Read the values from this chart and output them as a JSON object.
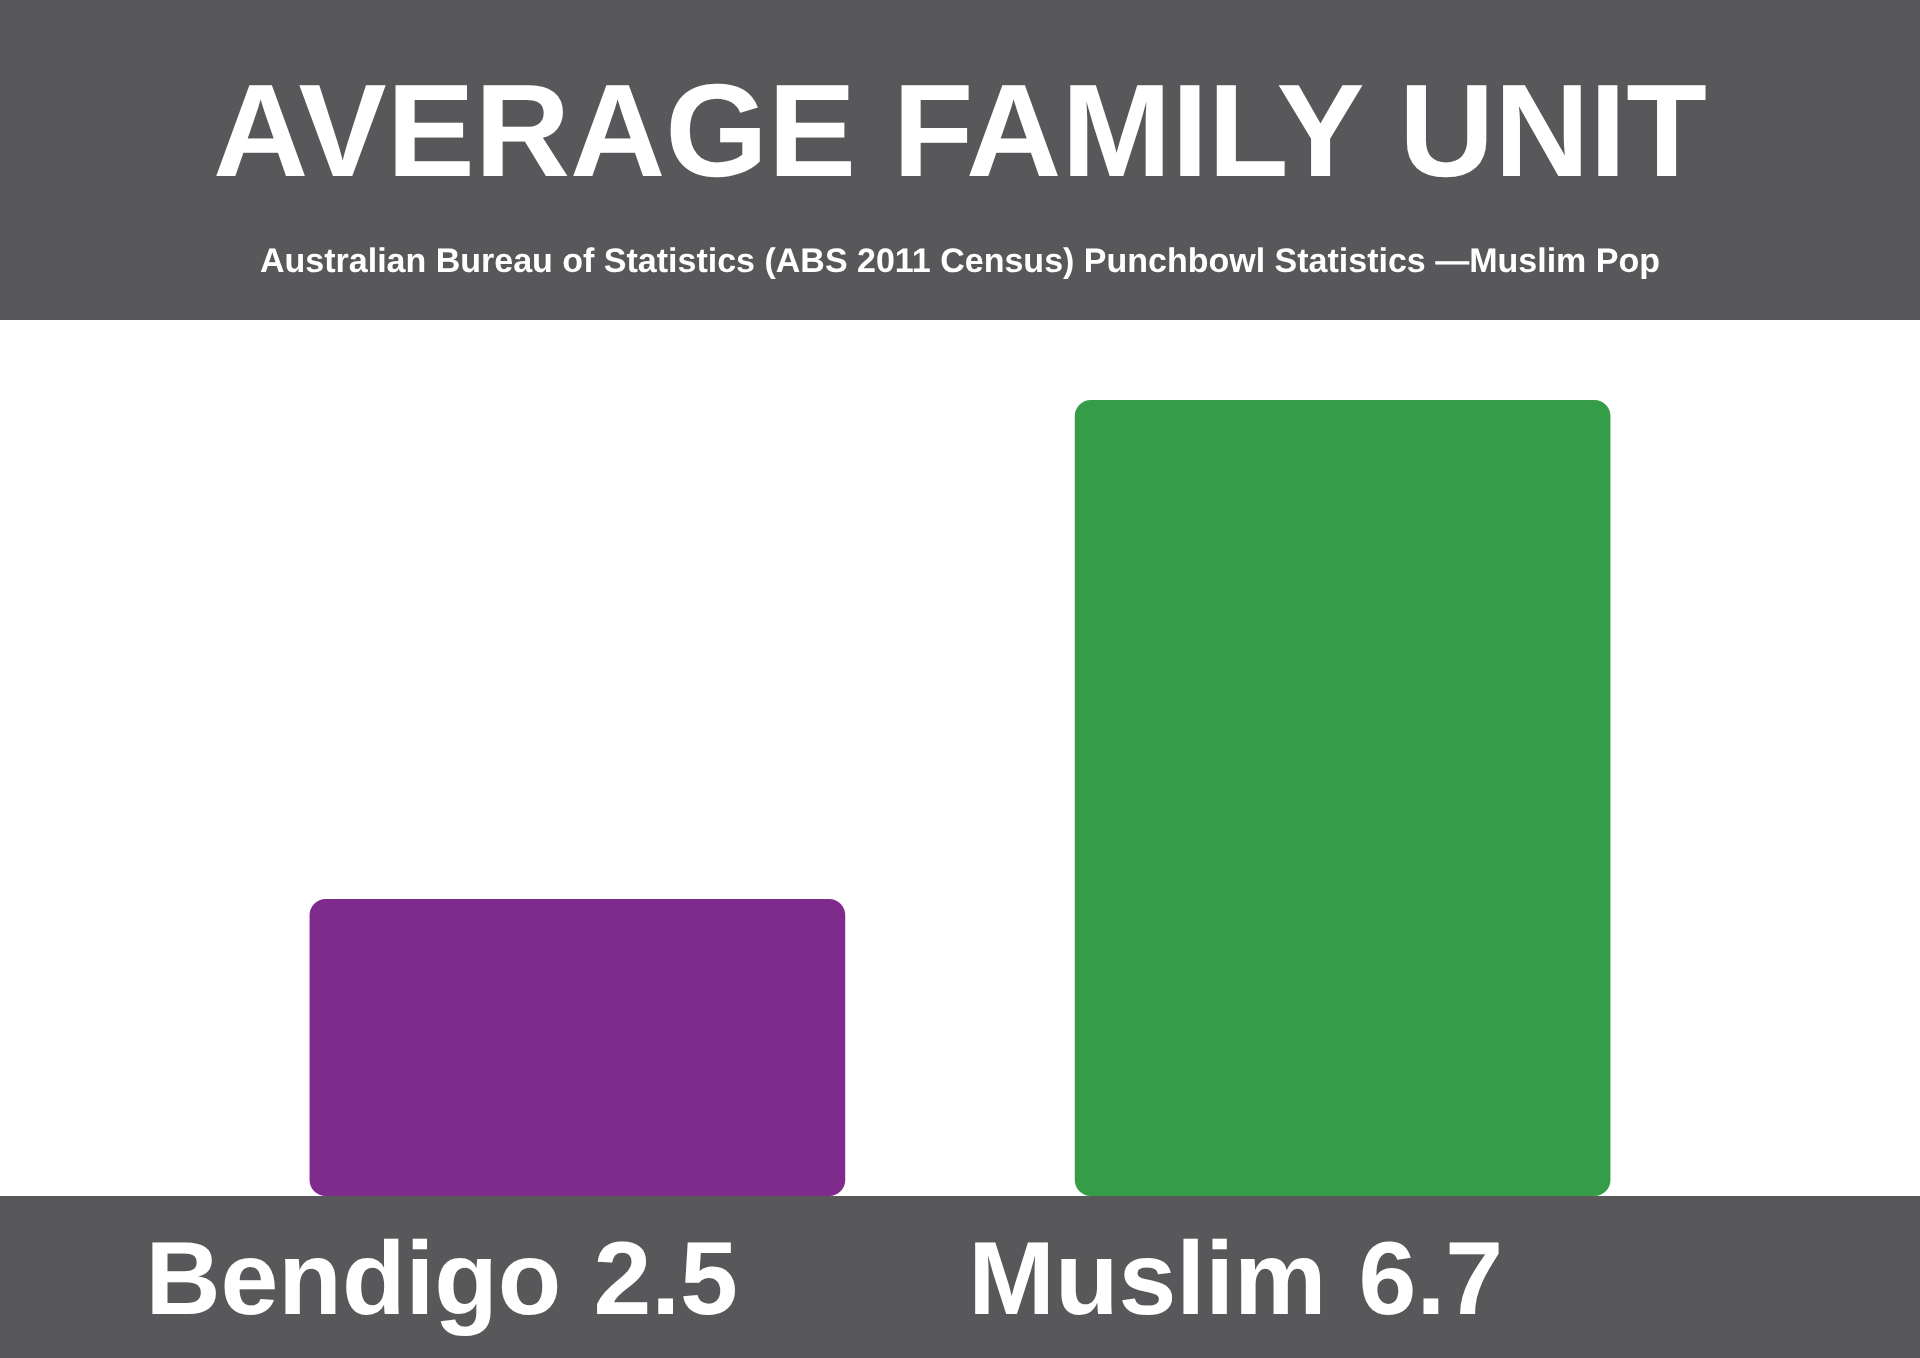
{
  "chart_data": {
    "type": "bar",
    "title": "AVERAGE FAMILY UNIT",
    "subtitle": "Australian Bureau of Statistics (ABS 2011 Census) Punchbowl Statistics —Muslim Pop",
    "categories": [
      "Bendigo",
      "Muslim"
    ],
    "values": [
      2.5,
      6.7
    ],
    "colors": [
      "#7f2b8d",
      "#359c48"
    ],
    "value_labels": [
      "2.5",
      "6.7"
    ]
  }
}
